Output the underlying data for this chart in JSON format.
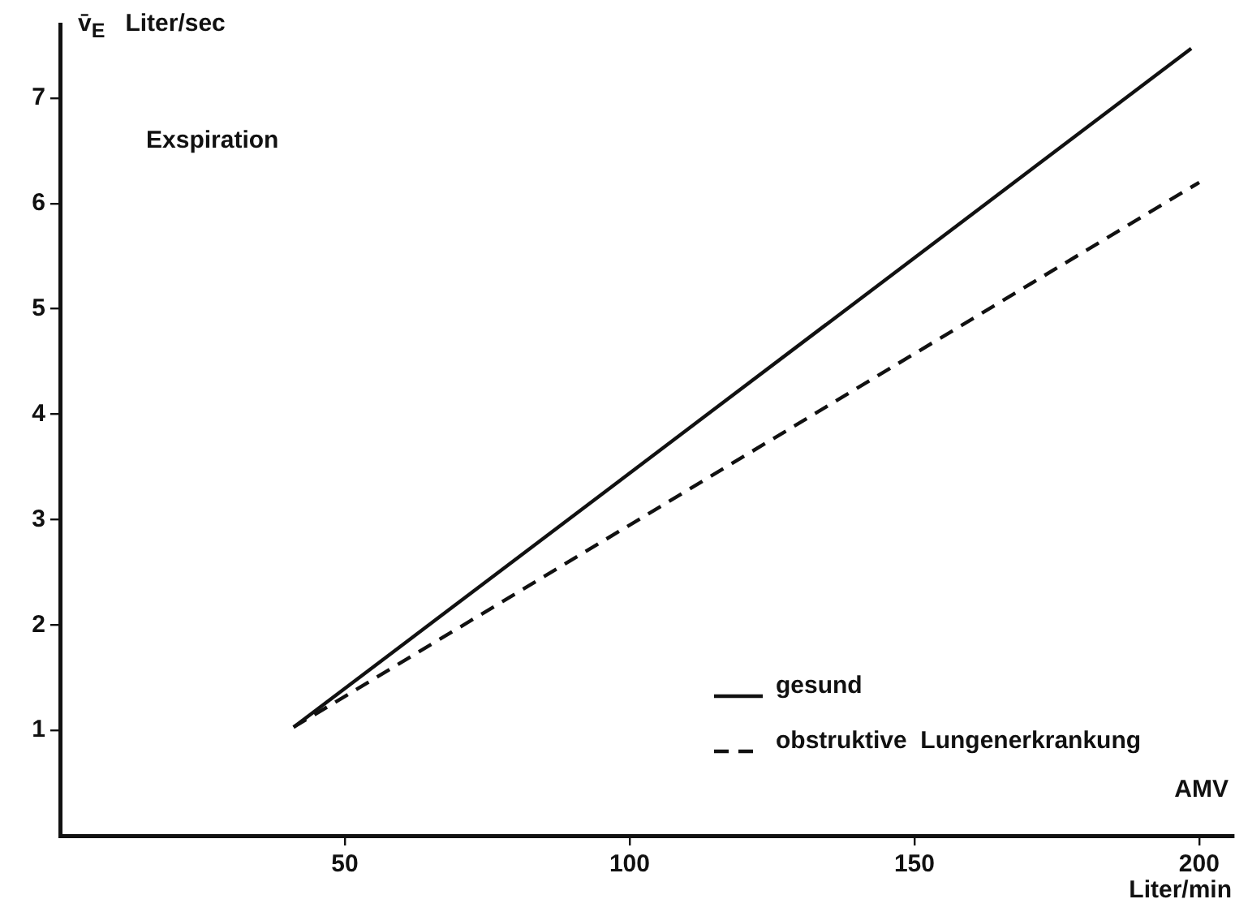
{
  "chart_data": {
    "type": "line",
    "ylabel": "v̄$_{E}$   Liter/sec",
    "xlabel": "AMV\nLiter/min",
    "annotations": [
      "Exspiration"
    ],
    "xlim": [
      0,
      206
    ],
    "xticks": [
      50,
      100,
      150,
      200
    ],
    "ylim": [
      0,
      7.7
    ],
    "yticks": [
      1,
      2,
      3,
      4,
      5,
      6,
      7
    ],
    "grid": false,
    "legend": "bottom right",
    "marker": "none",
    "series": [
      {
        "name": "gesund",
        "color": "#111111",
        "line_style": "solid",
        "x": [
          41,
          198.6
        ],
        "values": [
          1.03,
          7.47
        ]
      },
      {
        "name": "obstruktive  Lungenerkrankung",
        "color": "#111111",
        "line_style": "dashed",
        "x": [
          41,
          200
        ],
        "values": [
          1.03,
          6.2
        ]
      }
    ]
  }
}
